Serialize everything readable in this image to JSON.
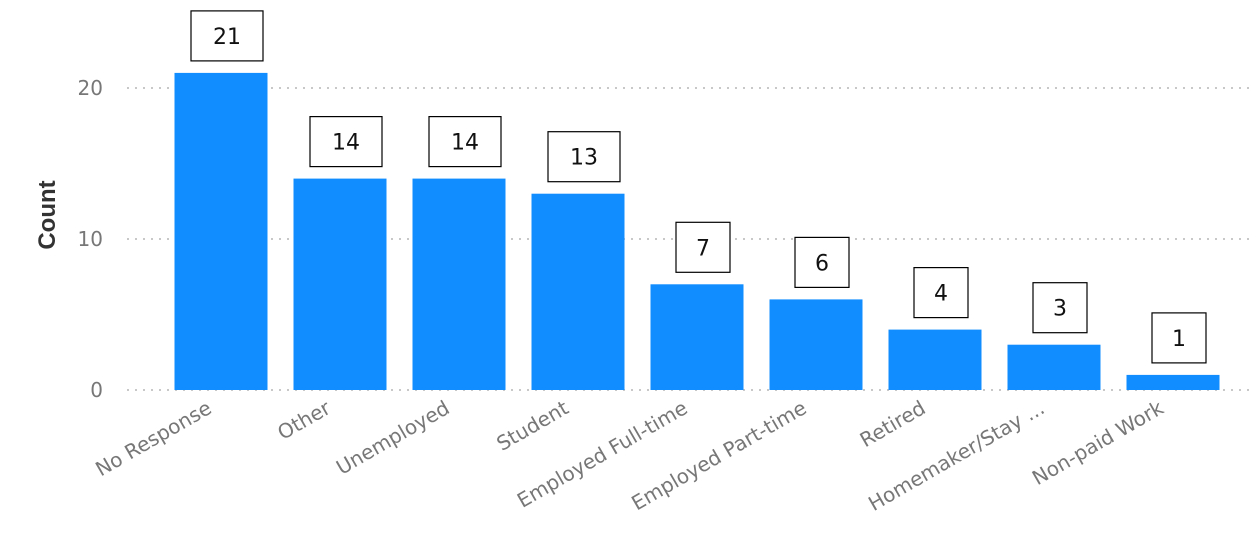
{
  "chart_data": {
    "type": "bar",
    "title": "",
    "xlabel": "",
    "ylabel": "Count",
    "ylim": [
      0,
      21
    ],
    "yticks": [
      0,
      10,
      20
    ],
    "grid": true,
    "color": "#118DFF",
    "categories": [
      "No Response",
      "Other",
      "Unemployed",
      "Student",
      "Employed Full-time",
      "Employed Part-time",
      "Retired",
      "Homemaker/Stay ...",
      "Non-paid Work"
    ],
    "values": [
      21,
      14,
      14,
      13,
      7,
      6,
      4,
      3,
      1
    ]
  }
}
